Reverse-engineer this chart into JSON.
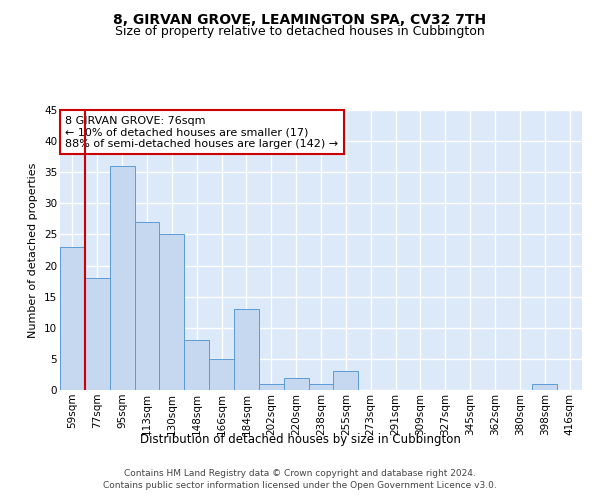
{
  "title": "8, GIRVAN GROVE, LEAMINGTON SPA, CV32 7TH",
  "subtitle": "Size of property relative to detached houses in Cubbington",
  "xlabel": "Distribution of detached houses by size in Cubbington",
  "ylabel": "Number of detached properties",
  "categories": [
    "59sqm",
    "77sqm",
    "95sqm",
    "113sqm",
    "130sqm",
    "148sqm",
    "166sqm",
    "184sqm",
    "202sqm",
    "220sqm",
    "238sqm",
    "255sqm",
    "273sqm",
    "291sqm",
    "309sqm",
    "327sqm",
    "345sqm",
    "362sqm",
    "380sqm",
    "398sqm",
    "416sqm"
  ],
  "values": [
    23,
    18,
    36,
    27,
    25,
    8,
    5,
    13,
    1,
    2,
    1,
    3,
    0,
    0,
    0,
    0,
    0,
    0,
    0,
    1,
    0
  ],
  "bar_color": "#c5d8f0",
  "bar_edge_color": "#5b9bd5",
  "background_color": "#dce9f8",
  "grid_color": "#ffffff",
  "fig_background": "#ffffff",
  "vline_x": 0.5,
  "vline_color": "#cc0000",
  "annotation_line1": "8 GIRVAN GROVE: 76sqm",
  "annotation_line2": "← 10% of detached houses are smaller (17)",
  "annotation_line3": "88% of semi-detached houses are larger (142) →",
  "annotation_box_color": "#ffffff",
  "annotation_box_edge": "#cc0000",
  "footnote": "Contains HM Land Registry data © Crown copyright and database right 2024.\nContains public sector information licensed under the Open Government Licence v3.0.",
  "ylim": [
    0,
    45
  ],
  "title_fontsize": 10,
  "subtitle_fontsize": 9,
  "xlabel_fontsize": 8.5,
  "ylabel_fontsize": 8,
  "tick_fontsize": 7.5,
  "annotation_fontsize": 8,
  "footnote_fontsize": 6.5
}
